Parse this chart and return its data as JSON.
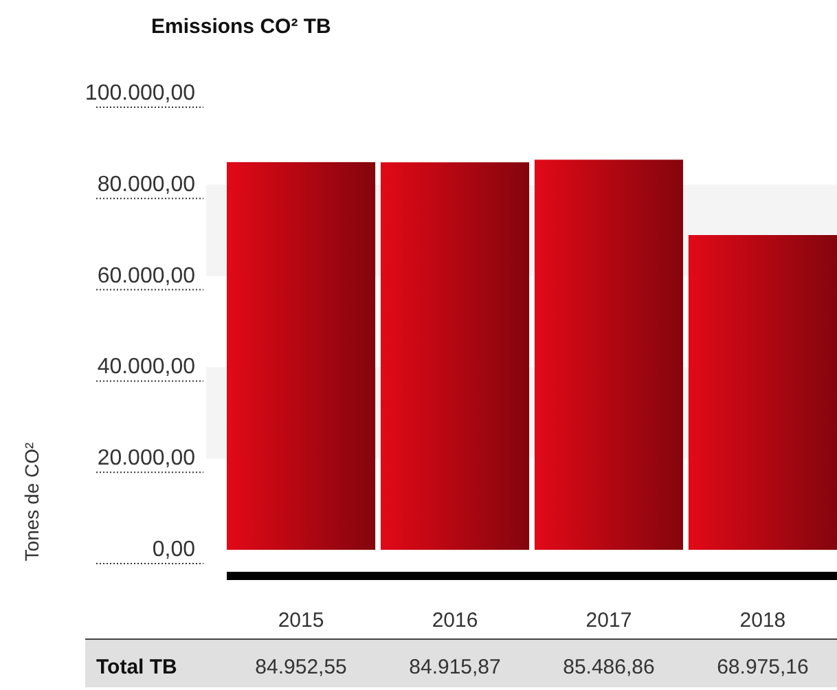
{
  "chart_data": {
    "type": "bar",
    "title": "Emissions CO² TB",
    "ylabel": "Tones de CO²",
    "categories": [
      "2015",
      "2016",
      "2017",
      "2018"
    ],
    "values": [
      84952.55,
      84915.87,
      85486.86,
      68975.16
    ],
    "value_labels": [
      "84.952,55",
      "84.915,87",
      "85.486,86",
      "68.975,16"
    ],
    "color": "#e20917",
    "ylim": [
      0,
      100000
    ],
    "yticks": [
      {
        "value": 0,
        "label": "0,00"
      },
      {
        "value": 20000,
        "label": "20.000,00"
      },
      {
        "value": 40000,
        "label": "40.000,00"
      },
      {
        "value": 60000,
        "label": "60.000,00"
      },
      {
        "value": 80000,
        "label": "80.000,00"
      },
      {
        "value": 100000,
        "label": "100.000,00"
      }
    ],
    "bands": [
      {
        "axis": "y",
        "from": 20000,
        "to": 40000,
        "color": "#f4f4f4"
      },
      {
        "axis": "y",
        "from": 60000,
        "to": 80000,
        "color": "#f4f4f4"
      }
    ],
    "annotations": [
      "Total TB"
    ]
  }
}
